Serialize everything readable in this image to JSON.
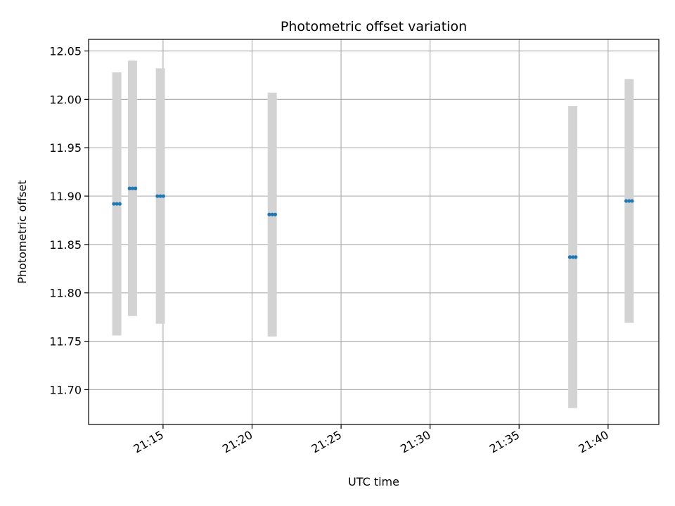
{
  "chart_data": {
    "type": "scatter",
    "title": "Photometric offset variation",
    "xlabel": "UTC time",
    "ylabel": "Photometric offset",
    "x_tick_labels": [
      "21:15",
      "21:20",
      "21:25",
      "21:30",
      "21:35",
      "21:40"
    ],
    "x_tick_values": [
      "21:15",
      "21:20",
      "21:25",
      "21:30",
      "21:35",
      "21:40"
    ],
    "xlim": [
      "21:10:49",
      "21:42:51"
    ],
    "y_ticks": [
      11.7,
      11.75,
      11.8,
      11.85,
      11.9,
      11.95,
      12.0,
      12.05
    ],
    "ylim": [
      11.664,
      12.062
    ],
    "grid": true,
    "point_color": "#1f77b4",
    "errorbar_color": "#d3d3d3",
    "groups": [
      {
        "x": [
          "21:12:14",
          "21:12:24",
          "21:12:34"
        ],
        "y": 11.892,
        "y_lower": 11.756,
        "y_upper": 12.028
      },
      {
        "x": [
          "21:13:07",
          "21:13:17",
          "21:13:27"
        ],
        "y": 11.908,
        "y_lower": 11.776,
        "y_upper": 12.04
      },
      {
        "x": [
          "21:14:41",
          "21:14:51",
          "21:15:01"
        ],
        "y": 11.9,
        "y_lower": 11.768,
        "y_upper": 12.032
      },
      {
        "x": [
          "21:20:58",
          "21:21:08",
          "21:21:18"
        ],
        "y": 11.881,
        "y_lower": 11.755,
        "y_upper": 12.007
      },
      {
        "x": [
          "21:37:51",
          "21:38:01",
          "21:38:11"
        ],
        "y": 11.837,
        "y_lower": 11.681,
        "y_upper": 11.993
      },
      {
        "x": [
          "21:41:01",
          "21:41:11",
          "21:41:21"
        ],
        "y": 11.895,
        "y_lower": 11.769,
        "y_upper": 12.021
      }
    ]
  }
}
